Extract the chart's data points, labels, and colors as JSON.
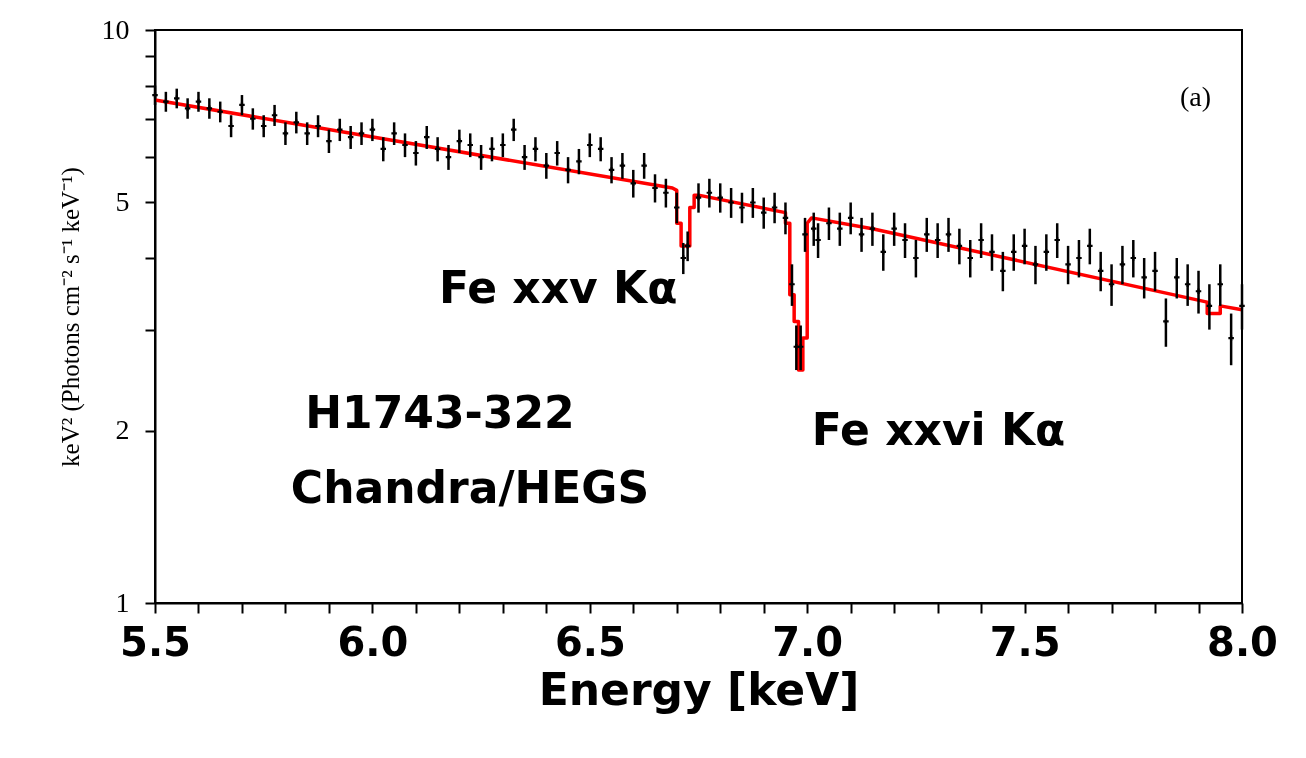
{
  "chart_data": {
    "type": "scatter",
    "xlabel": "Energy [keV]",
    "ylabel": "keV² (Photons cm⁻² s⁻¹ keV⁻¹)",
    "log": "y",
    "grid": false,
    "marker": "cross",
    "xlim": [
      5.5,
      8.0
    ],
    "xticks": [
      5.5,
      {
        "value": 5.6,
        "label": null
      },
      {
        "value": 5.7,
        "label": null
      },
      {
        "value": 5.8,
        "label": null
      },
      {
        "value": 5.9,
        "label": null
      },
      {
        "value": 6.0,
        "label": "6.0"
      },
      {
        "value": 6.1,
        "label": null
      },
      {
        "value": 6.2,
        "label": null
      },
      {
        "value": 6.3,
        "label": null
      },
      {
        "value": 6.4,
        "label": null
      },
      6.5,
      {
        "value": 6.6,
        "label": null
      },
      {
        "value": 6.7,
        "label": null
      },
      {
        "value": 6.8,
        "label": null
      },
      {
        "value": 6.9,
        "label": null
      },
      {
        "value": 7.0,
        "label": "7.0"
      },
      {
        "value": 7.1,
        "label": null
      },
      {
        "value": 7.2,
        "label": null
      },
      {
        "value": 7.3,
        "label": null
      },
      {
        "value": 7.4,
        "label": null
      },
      7.5,
      {
        "value": 7.6,
        "label": null
      },
      {
        "value": 7.7,
        "label": null
      },
      {
        "value": 7.8,
        "label": null
      },
      {
        "value": 7.9,
        "label": null
      },
      {
        "value": 8.0,
        "label": "8.0"
      }
    ],
    "ylim": [
      1,
      10
    ],
    "yticks": [
      1,
      2,
      {
        "value": 3,
        "label": null
      },
      {
        "value": 4,
        "label": null
      },
      5,
      {
        "value": 6,
        "label": null
      },
      {
        "value": 7,
        "label": null
      },
      {
        "value": 8,
        "label": null
      },
      {
        "value": 9,
        "label": null
      },
      10
    ],
    "annotations": [
      "(a)",
      {
        "text": "Fe xxv Kα",
        "x": 6.72,
        "y": 4.2
      },
      {
        "text": "Fe xxvi Kα",
        "x": 6.98,
        "y": 2.55
      },
      "H1743-322",
      "Chandra/HEGS"
    ],
    "series": [
      {
        "color": "#000000",
        "x": [
          5.5,
          5.525,
          5.55,
          5.575,
          5.6,
          5.625,
          5.65,
          5.675,
          5.7,
          5.725,
          5.75,
          5.775,
          5.8,
          5.825,
          5.85,
          5.875,
          5.9,
          5.925,
          5.95,
          5.975,
          6.0,
          6.025,
          6.05,
          6.075,
          6.1,
          6.125,
          6.15,
          6.175,
          6.2,
          6.225,
          6.25,
          6.275,
          6.3,
          6.325,
          6.35,
          6.375,
          6.4,
          6.425,
          6.45,
          6.475,
          6.5,
          6.525,
          6.55,
          6.575,
          6.6,
          6.625,
          6.65,
          6.675,
          6.7,
          6.715,
          6.725,
          6.75,
          6.775,
          6.8,
          6.825,
          6.85,
          6.875,
          6.9,
          6.925,
          6.95,
          6.965,
          6.975,
          6.985,
          6.995,
          7.015,
          7.025,
          7.05,
          7.075,
          7.1,
          7.125,
          7.15,
          7.175,
          7.2,
          7.225,
          7.25,
          7.275,
          7.3,
          7.325,
          7.35,
          7.375,
          7.4,
          7.425,
          7.45,
          7.475,
          7.5,
          7.525,
          7.55,
          7.575,
          7.6,
          7.625,
          7.65,
          7.675,
          7.7,
          7.725,
          7.75,
          7.775,
          7.8,
          7.825,
          7.85,
          7.875,
          7.9,
          7.925,
          7.95,
          7.975,
          8.0
        ],
        "values": [
          7.7,
          7.5,
          7.6,
          7.3,
          7.5,
          7.3,
          7.2,
          6.8,
          7.4,
          7.0,
          6.8,
          7.1,
          6.6,
          6.9,
          6.6,
          6.8,
          6.4,
          6.7,
          6.5,
          6.6,
          6.7,
          6.2,
          6.6,
          6.3,
          6.1,
          6.5,
          6.2,
          6.0,
          6.4,
          6.3,
          6.0,
          6.2,
          6.3,
          6.7,
          6.0,
          6.2,
          5.8,
          6.1,
          5.7,
          5.9,
          6.3,
          6.2,
          5.7,
          5.8,
          5.4,
          5.8,
          5.3,
          5.2,
          4.9,
          4.0,
          4.2,
          5.1,
          5.2,
          5.1,
          5.0,
          4.9,
          5.0,
          4.8,
          4.9,
          4.7,
          3.6,
          2.8,
          2.8,
          4.4,
          4.5,
          4.3,
          4.6,
          4.5,
          4.7,
          4.4,
          4.5,
          4.1,
          4.5,
          4.3,
          4.0,
          4.4,
          4.3,
          4.4,
          4.2,
          4.0,
          4.3,
          4.1,
          3.8,
          4.1,
          4.2,
          3.9,
          4.1,
          4.3,
          3.9,
          4.0,
          4.2,
          3.8,
          3.6,
          3.9,
          4.0,
          3.7,
          3.8,
          3.1,
          3.7,
          3.6,
          3.5,
          3.3,
          3.6,
          2.9,
          3.3
        ],
        "errors": [
          0.3,
          0.3,
          0.3,
          0.3,
          0.3,
          0.3,
          0.3,
          0.3,
          0.3,
          0.3,
          0.3,
          0.3,
          0.3,
          0.3,
          0.3,
          0.3,
          0.3,
          0.3,
          0.3,
          0.3,
          0.3,
          0.3,
          0.3,
          0.3,
          0.3,
          0.3,
          0.3,
          0.3,
          0.3,
          0.3,
          0.3,
          0.3,
          0.3,
          0.3,
          0.3,
          0.3,
          0.3,
          0.3,
          0.3,
          0.3,
          0.3,
          0.3,
          0.3,
          0.3,
          0.3,
          0.3,
          0.3,
          0.3,
          0.3,
          0.25,
          0.25,
          0.3,
          0.3,
          0.3,
          0.3,
          0.3,
          0.3,
          0.3,
          0.3,
          0.3,
          0.3,
          0.25,
          0.25,
          0.3,
          0.3,
          0.3,
          0.3,
          0.3,
          0.3,
          0.3,
          0.3,
          0.3,
          0.3,
          0.3,
          0.3,
          0.3,
          0.3,
          0.3,
          0.3,
          0.3,
          0.3,
          0.3,
          0.3,
          0.3,
          0.3,
          0.3,
          0.3,
          0.3,
          0.3,
          0.3,
          0.3,
          0.3,
          0.3,
          0.3,
          0.3,
          0.3,
          0.3,
          0.3,
          0.3,
          0.3,
          0.3,
          0.3,
          0.3,
          0.3,
          0.3
        ]
      },
      {
        "type": "line",
        "color": "#ff0000",
        "marker": "none",
        "line_style": "solid",
        "x": [
          5.5,
          6.69,
          6.7,
          6.7,
          6.71,
          6.71,
          6.73,
          6.73,
          6.74,
          6.74,
          6.75,
          6.95,
          6.95,
          6.96,
          6.96,
          6.97,
          6.97,
          6.98,
          6.98,
          6.99,
          6.99,
          7.0,
          7.0,
          7.01,
          7.15,
          7.92,
          7.92,
          7.95,
          7.95,
          8.0
        ],
        "values": [
          7.55,
          5.3,
          5.25,
          4.6,
          4.6,
          4.2,
          4.2,
          4.9,
          4.9,
          5.15,
          5.15,
          4.8,
          4.6,
          4.6,
          3.45,
          3.45,
          3.1,
          3.1,
          2.55,
          2.55,
          2.9,
          2.9,
          4.6,
          4.7,
          4.5,
          3.35,
          3.2,
          3.2,
          3.3,
          3.25
        ]
      }
    ]
  }
}
